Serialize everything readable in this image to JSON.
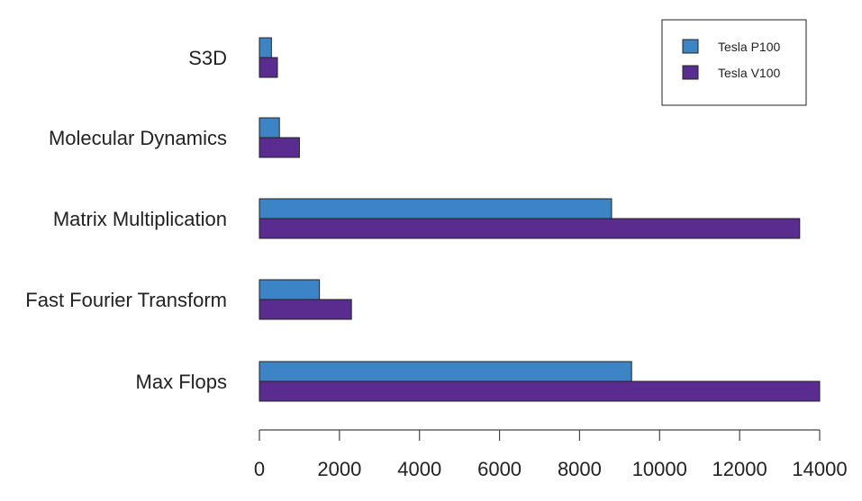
{
  "chart_data": {
    "type": "bar",
    "orientation": "horizontal",
    "categories": [
      "S3D",
      "Molecular Dynamics",
      "Matrix Multiplication",
      "Fast Fourier Transform",
      "Max Flops"
    ],
    "series": [
      {
        "name": "Tesla P100",
        "color": "#3d84c6",
        "values": [
          300,
          500,
          8800,
          1500,
          9300
        ]
      },
      {
        "name": "Tesla V100",
        "color": "#5b2c8f",
        "values": [
          450,
          1000,
          13500,
          2300,
          14000
        ]
      }
    ],
    "xlim": [
      0,
      14000
    ],
    "xticks": [
      0,
      2000,
      4000,
      6000,
      8000,
      10000,
      12000,
      14000
    ],
    "xtick_labels": [
      "0",
      "2000",
      "4000",
      "6000",
      "8000",
      "10000",
      "12000",
      "14000"
    ],
    "title": "",
    "xlabel": "",
    "ylabel": "",
    "grid": false,
    "legend_position": "top-right"
  }
}
